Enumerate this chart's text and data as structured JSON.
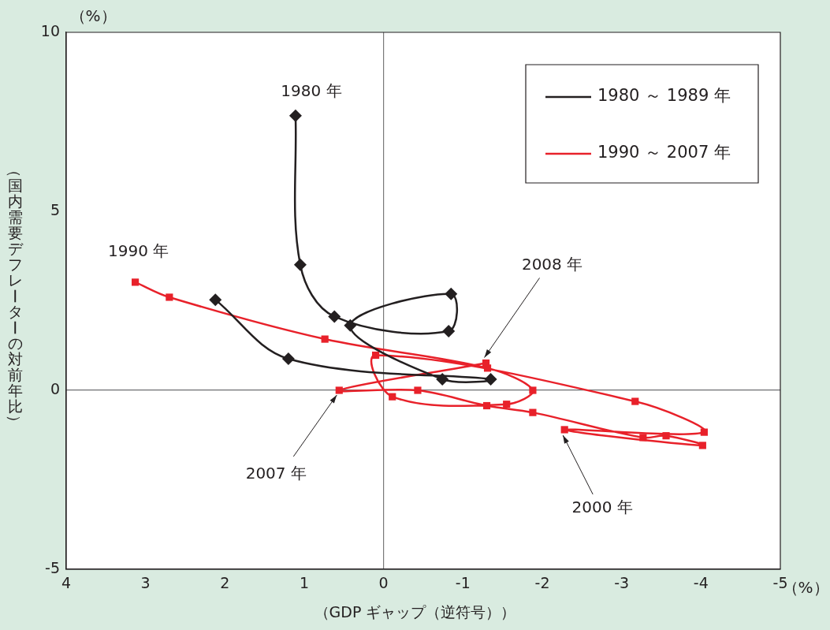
{
  "chart_data": {
    "type": "line",
    "xlabel": "（GDP ギャップ（逆符号））",
    "ylabel": "（国内需要デフレーターの対前年比）",
    "xlim": [
      4,
      -5
    ],
    "xticks": [
      4,
      3,
      2,
      1,
      0,
      -1,
      -2,
      -3,
      -4,
      -5
    ],
    "ylim": [
      -5,
      10
    ],
    "yticks": [
      -5,
      0,
      5,
      10
    ],
    "grid": false,
    "legend": "top right",
    "ref_lines": [
      {
        "axis": "x",
        "value": 0,
        "color": "#7a7a7a"
      },
      {
        "axis": "y",
        "value": 0,
        "color": "#6d6e71"
      }
    ],
    "series": [
      {
        "name": "1980 ～ 1989 年",
        "color": "#231f20",
        "marker": "diamond",
        "x": [
          1.11,
          1.05,
          0.62,
          -0.82,
          -0.85,
          0.42,
          -0.74,
          -1.35,
          1.2,
          2.12
        ],
        "values": [
          7.67,
          3.51,
          2.06,
          1.65,
          2.69,
          1.81,
          0.31,
          0.31,
          0.88,
          2.53
        ]
      },
      {
        "name": "1990 ～ 2007 年",
        "color": "#e8212a",
        "marker": "square",
        "x": [
          3.13,
          2.7,
          0.74,
          -1.31,
          -1.88,
          -1.55,
          -0.11,
          0.1,
          -3.17,
          -4.04,
          -2.28,
          -4.02,
          -3.56,
          -3.27,
          -1.88,
          -1.3,
          -0.43,
          0.56,
          -1.29
        ],
        "values": [
          3.02,
          2.6,
          1.43,
          0.62,
          0,
          -0.39,
          -0.18,
          0.98,
          -0.31,
          -1.17,
          -1.1,
          -1.54,
          -1.27,
          -1.32,
          -0.62,
          -0.43,
          0,
          0,
          0.76
        ]
      }
    ],
    "annotations": [
      {
        "text": "1980 年",
        "x": 1.11,
        "y": 7.67
      },
      {
        "text": "1990 年",
        "x": 3.13,
        "y": 3.02
      },
      {
        "text": "2008 年",
        "x": -1.29,
        "y": 0.76
      },
      {
        "text": "2007 年",
        "x": 0.56,
        "y": 0
      },
      {
        "text": "2000 年",
        "x": -2.28,
        "y": -1.1
      },
      "（%）",
      "（%）"
    ]
  }
}
